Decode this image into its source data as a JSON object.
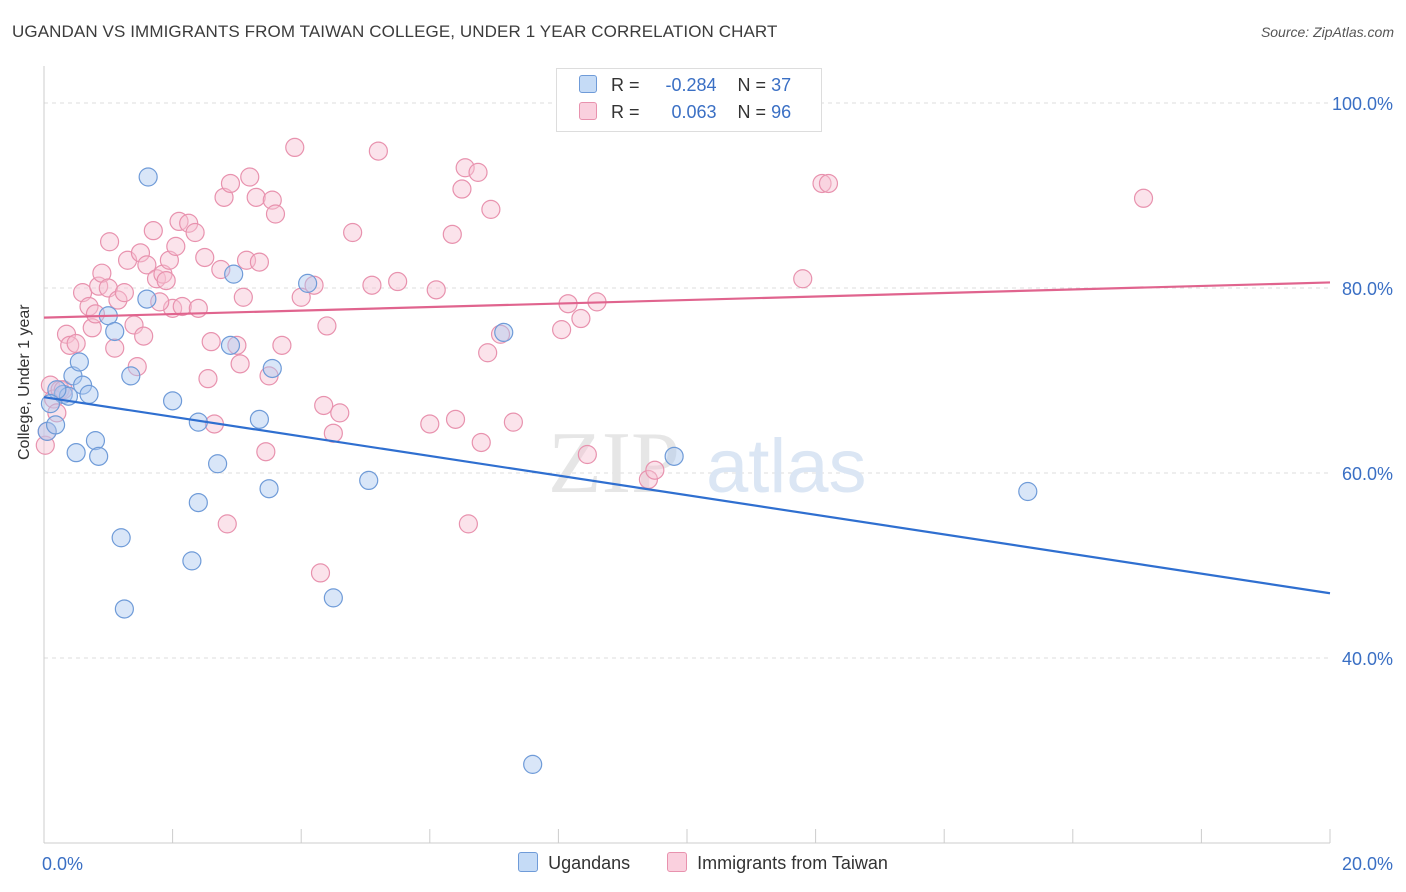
{
  "title": "UGANDAN VS IMMIGRANTS FROM TAIWAN COLLEGE, UNDER 1 YEAR CORRELATION CHART",
  "source": "Source: ZipAtlas.com",
  "watermark_a": "ZIP",
  "watermark_b": "atlas",
  "legend": {
    "r_label": "R =",
    "n_label": "N =",
    "series0": {
      "r": "-0.284",
      "n": "37"
    },
    "series1": {
      "r": "0.063",
      "n": "96"
    }
  },
  "colors": {
    "blue_fill": "#aac8f0",
    "blue_stroke": "#6f9bd8",
    "blue_line": "#2f6fd0",
    "pink_fill": "#f7c0d2",
    "pink_stroke": "#e892ae",
    "pink_line": "#e0648e",
    "tick_label": "#3a6fc4",
    "grid": "#dddddd"
  },
  "chart_data": {
    "type": "scatter",
    "xlabel": "",
    "ylabel": "College, Under 1 year",
    "xlim": [
      0,
      20
    ],
    "ylim": [
      20,
      104
    ],
    "x_tick_labels": [
      {
        "value": 0,
        "label": "0.0%"
      },
      {
        "value": 20,
        "label": "20.0%"
      }
    ],
    "y_tick_labels": [
      {
        "value": 100,
        "label": "100.0%"
      },
      {
        "value": 80,
        "label": "80.0%"
      },
      {
        "value": 60,
        "label": "60.0%"
      },
      {
        "value": 40,
        "label": "40.0%"
      }
    ],
    "grid": true,
    "legend_position": "top-center",
    "series": [
      {
        "name": "Ugandans",
        "color": "#aac8f0",
        "trend": {
          "x": [
            0,
            20
          ],
          "y": [
            68.2,
            47.0
          ]
        },
        "points": [
          {
            "x": 0.05,
            "y": 64.5
          },
          {
            "x": 0.18,
            "y": 65.2
          },
          {
            "x": 0.3,
            "y": 68.5
          },
          {
            "x": 0.38,
            "y": 68.3
          },
          {
            "x": 0.45,
            "y": 70.5
          },
          {
            "x": 0.55,
            "y": 72.0
          },
          {
            "x": 0.6,
            "y": 69.5
          },
          {
            "x": 0.5,
            "y": 62.2
          },
          {
            "x": 0.8,
            "y": 63.5
          },
          {
            "x": 0.85,
            "y": 61.8
          },
          {
            "x": 1.0,
            "y": 77.0
          },
          {
            "x": 1.1,
            "y": 75.3
          },
          {
            "x": 1.35,
            "y": 70.5
          },
          {
            "x": 1.2,
            "y": 53.0
          },
          {
            "x": 1.25,
            "y": 45.3
          },
          {
            "x": 1.6,
            "y": 78.8
          },
          {
            "x": 1.62,
            "y": 92.0
          },
          {
            "x": 2.0,
            "y": 67.8
          },
          {
            "x": 2.4,
            "y": 65.5
          },
          {
            "x": 2.4,
            "y": 56.8
          },
          {
            "x": 2.3,
            "y": 50.5
          },
          {
            "x": 2.7,
            "y": 61.0
          },
          {
            "x": 2.95,
            "y": 81.5
          },
          {
            "x": 2.9,
            "y": 73.8
          },
          {
            "x": 3.35,
            "y": 65.8
          },
          {
            "x": 3.5,
            "y": 58.3
          },
          {
            "x": 3.55,
            "y": 71.3
          },
          {
            "x": 4.1,
            "y": 80.5
          },
          {
            "x": 4.5,
            "y": 46.5
          },
          {
            "x": 5.05,
            "y": 59.2
          },
          {
            "x": 7.15,
            "y": 75.2
          },
          {
            "x": 7.6,
            "y": 28.5
          },
          {
            "x": 9.8,
            "y": 61.8
          },
          {
            "x": 15.3,
            "y": 58.0
          },
          {
            "x": 0.2,
            "y": 69.0
          },
          {
            "x": 0.1,
            "y": 67.5
          },
          {
            "x": 0.7,
            "y": 68.5
          }
        ]
      },
      {
        "name": "Immigrants from Taiwan",
        "color": "#f7c0d2",
        "trend": {
          "x": [
            0,
            20
          ],
          "y": [
            76.8,
            80.6
          ]
        },
        "points": [
          {
            "x": 0.02,
            "y": 63.0
          },
          {
            "x": 0.05,
            "y": 64.5
          },
          {
            "x": 0.1,
            "y": 69.5
          },
          {
            "x": 0.15,
            "y": 68.0
          },
          {
            "x": 0.2,
            "y": 66.5
          },
          {
            "x": 0.25,
            "y": 69.0
          },
          {
            "x": 0.35,
            "y": 75.0
          },
          {
            "x": 0.4,
            "y": 73.8
          },
          {
            "x": 0.5,
            "y": 74.0
          },
          {
            "x": 0.6,
            "y": 79.5
          },
          {
            "x": 0.7,
            "y": 78.0
          },
          {
            "x": 0.75,
            "y": 75.7
          },
          {
            "x": 0.8,
            "y": 77.2
          },
          {
            "x": 0.85,
            "y": 80.2
          },
          {
            "x": 0.9,
            "y": 81.6
          },
          {
            "x": 1.0,
            "y": 80.0
          },
          {
            "x": 1.02,
            "y": 85.0
          },
          {
            "x": 1.1,
            "y": 73.5
          },
          {
            "x": 1.15,
            "y": 78.7
          },
          {
            "x": 1.25,
            "y": 79.5
          },
          {
            "x": 1.3,
            "y": 83.0
          },
          {
            "x": 1.4,
            "y": 76.0
          },
          {
            "x": 1.45,
            "y": 71.5
          },
          {
            "x": 1.5,
            "y": 83.8
          },
          {
            "x": 1.55,
            "y": 74.8
          },
          {
            "x": 1.6,
            "y": 82.5
          },
          {
            "x": 1.7,
            "y": 86.2
          },
          {
            "x": 1.75,
            "y": 81.0
          },
          {
            "x": 1.85,
            "y": 81.5
          },
          {
            "x": 1.9,
            "y": 80.8
          },
          {
            "x": 1.95,
            "y": 83.0
          },
          {
            "x": 2.0,
            "y": 77.8
          },
          {
            "x": 2.05,
            "y": 84.5
          },
          {
            "x": 2.1,
            "y": 87.2
          },
          {
            "x": 2.15,
            "y": 78.0
          },
          {
            "x": 2.25,
            "y": 87.0
          },
          {
            "x": 2.35,
            "y": 86.0
          },
          {
            "x": 2.4,
            "y": 77.8
          },
          {
            "x": 2.5,
            "y": 83.3
          },
          {
            "x": 2.55,
            "y": 70.2
          },
          {
            "x": 2.6,
            "y": 74.2
          },
          {
            "x": 2.65,
            "y": 65.3
          },
          {
            "x": 2.75,
            "y": 82.0
          },
          {
            "x": 2.8,
            "y": 89.8
          },
          {
            "x": 2.85,
            "y": 54.5
          },
          {
            "x": 2.9,
            "y": 91.3
          },
          {
            "x": 3.0,
            "y": 73.8
          },
          {
            "x": 3.05,
            "y": 71.8
          },
          {
            "x": 3.1,
            "y": 79.0
          },
          {
            "x": 3.15,
            "y": 83.0
          },
          {
            "x": 3.2,
            "y": 92.0
          },
          {
            "x": 3.3,
            "y": 89.8
          },
          {
            "x": 3.35,
            "y": 82.8
          },
          {
            "x": 3.45,
            "y": 62.3
          },
          {
            "x": 3.5,
            "y": 70.5
          },
          {
            "x": 3.55,
            "y": 89.5
          },
          {
            "x": 3.6,
            "y": 88.0
          },
          {
            "x": 3.7,
            "y": 73.8
          },
          {
            "x": 3.9,
            "y": 95.2
          },
          {
            "x": 4.0,
            "y": 79.0
          },
          {
            "x": 4.2,
            "y": 80.3
          },
          {
            "x": 4.3,
            "y": 49.2
          },
          {
            "x": 4.35,
            "y": 67.3
          },
          {
            "x": 4.4,
            "y": 75.9
          },
          {
            "x": 4.5,
            "y": 64.3
          },
          {
            "x": 4.6,
            "y": 66.5
          },
          {
            "x": 4.8,
            "y": 86.0
          },
          {
            "x": 5.1,
            "y": 80.3
          },
          {
            "x": 5.2,
            "y": 94.8
          },
          {
            "x": 5.5,
            "y": 80.7
          },
          {
            "x": 6.0,
            "y": 65.3
          },
          {
            "x": 6.1,
            "y": 79.8
          },
          {
            "x": 6.35,
            "y": 85.8
          },
          {
            "x": 6.4,
            "y": 65.8
          },
          {
            "x": 6.5,
            "y": 90.7
          },
          {
            "x": 6.55,
            "y": 93.0
          },
          {
            "x": 6.6,
            "y": 54.5
          },
          {
            "x": 6.75,
            "y": 92.5
          },
          {
            "x": 6.8,
            "y": 63.3
          },
          {
            "x": 6.9,
            "y": 73.0
          },
          {
            "x": 6.95,
            "y": 88.5
          },
          {
            "x": 7.1,
            "y": 75.0
          },
          {
            "x": 7.3,
            "y": 65.5
          },
          {
            "x": 8.05,
            "y": 75.5
          },
          {
            "x": 8.15,
            "y": 78.3
          },
          {
            "x": 8.35,
            "y": 76.7
          },
          {
            "x": 8.45,
            "y": 62.0
          },
          {
            "x": 8.6,
            "y": 78.5
          },
          {
            "x": 9.4,
            "y": 59.3
          },
          {
            "x": 9.5,
            "y": 60.3
          },
          {
            "x": 11.8,
            "y": 81.0
          },
          {
            "x": 12.1,
            "y": 91.3
          },
          {
            "x": 12.2,
            "y": 91.3
          },
          {
            "x": 17.1,
            "y": 89.7
          },
          {
            "x": 1.8,
            "y": 78.5
          },
          {
            "x": 0.3,
            "y": 69.0
          }
        ]
      }
    ]
  }
}
